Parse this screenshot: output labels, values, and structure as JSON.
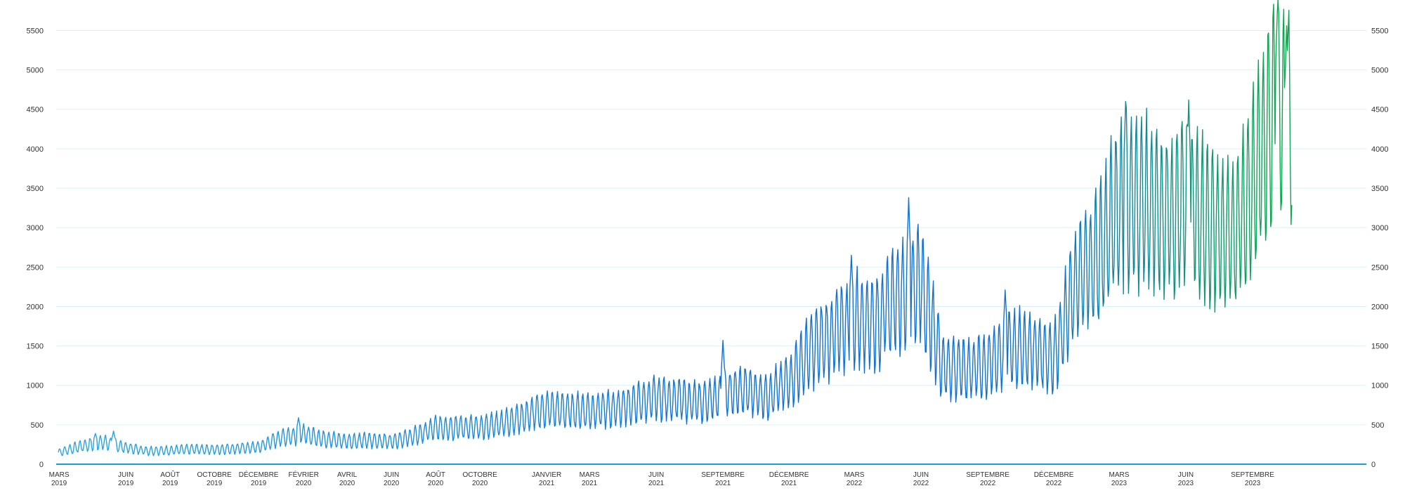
{
  "chart_data": {
    "type": "line",
    "title": "",
    "xlabel": "",
    "ylabel": "",
    "ylim": [
      0,
      5700
    ],
    "y_ticks": [
      0,
      500,
      1000,
      1500,
      2000,
      2500,
      3000,
      3500,
      4000,
      4500,
      5000,
      5500
    ],
    "y_axes": [
      "left",
      "right"
    ],
    "grid": true,
    "x_range": [
      "2019-02-25",
      "2024-01-31"
    ],
    "x_ticks": [
      {
        "month": "MARS",
        "year": "2019",
        "date": "2019-03-01"
      },
      {
        "month": "JUIN",
        "year": "2019",
        "date": "2019-06-01"
      },
      {
        "month": "AOÛT",
        "year": "2019",
        "date": "2019-08-01"
      },
      {
        "month": "OCTOBRE",
        "year": "2019",
        "date": "2019-10-01"
      },
      {
        "month": "DÉCEMBRE",
        "year": "2019",
        "date": "2019-12-01"
      },
      {
        "month": "FÉVRIER",
        "year": "2020",
        "date": "2020-02-01"
      },
      {
        "month": "AVRIL",
        "year": "2020",
        "date": "2020-04-01"
      },
      {
        "month": "JUIN",
        "year": "2020",
        "date": "2020-06-01"
      },
      {
        "month": "AOÛT",
        "year": "2020",
        "date": "2020-08-01"
      },
      {
        "month": "OCTOBRE",
        "year": "2020",
        "date": "2020-10-01"
      },
      {
        "month": "JANVIER",
        "year": "2021",
        "date": "2021-01-01"
      },
      {
        "month": "MARS",
        "year": "2021",
        "date": "2021-03-01"
      },
      {
        "month": "JUIN",
        "year": "2021",
        "date": "2021-06-01"
      },
      {
        "month": "SEPTEMBRE",
        "year": "2021",
        "date": "2021-09-01"
      },
      {
        "month": "DÉCEMBRE",
        "year": "2021",
        "date": "2021-12-01"
      },
      {
        "month": "MARS",
        "year": "2022",
        "date": "2022-03-01"
      },
      {
        "month": "JUIN",
        "year": "2022",
        "date": "2022-06-01"
      },
      {
        "month": "SEPTEMBRE",
        "year": "2022",
        "date": "2022-09-01"
      },
      {
        "month": "DÉCEMBRE",
        "year": "2022",
        "date": "2022-12-01"
      },
      {
        "month": "MARS",
        "year": "2023",
        "date": "2023-03-01"
      },
      {
        "month": "JUIN",
        "year": "2023",
        "date": "2023-06-01"
      },
      {
        "month": "SEPTEMBRE",
        "year": "2023",
        "date": "2023-09-01"
      }
    ],
    "series": [
      {
        "values": [
          [
            "2019-03-01",
            150
          ],
          [
            "2019-04-01",
            230
          ],
          [
            "2019-05-01",
            280
          ],
          [
            "2019-06-01",
            210
          ],
          [
            "2019-07-01",
            170
          ],
          [
            "2019-08-01",
            175
          ],
          [
            "2019-09-01",
            190
          ],
          [
            "2019-10-01",
            185
          ],
          [
            "2019-11-01",
            200
          ],
          [
            "2019-12-01",
            215
          ],
          [
            "2020-01-01",
            340
          ],
          [
            "2020-02-01",
            380
          ],
          [
            "2020-03-01",
            320
          ],
          [
            "2020-04-01",
            290
          ],
          [
            "2020-05-01",
            300
          ],
          [
            "2020-06-01",
            290
          ],
          [
            "2020-07-01",
            350
          ],
          [
            "2020-08-01",
            460
          ],
          [
            "2020-09-01",
            470
          ],
          [
            "2020-10-01",
            460
          ],
          [
            "2020-11-01",
            520
          ],
          [
            "2020-12-01",
            600
          ],
          [
            "2021-01-01",
            700
          ],
          [
            "2021-02-01",
            680
          ],
          [
            "2021-03-01",
            680
          ],
          [
            "2021-04-01",
            700
          ],
          [
            "2021-05-01",
            760
          ],
          [
            "2021-06-01",
            840
          ],
          [
            "2021-07-01",
            820
          ],
          [
            "2021-08-01",
            780
          ],
          [
            "2021-09-01",
            880
          ],
          [
            "2021-10-01",
            940
          ],
          [
            "2021-11-01",
            860
          ],
          [
            "2021-12-01",
            1050
          ],
          [
            "2022-01-01",
            1450
          ],
          [
            "2022-02-01",
            1650
          ],
          [
            "2022-03-01",
            1850
          ],
          [
            "2022-04-01",
            1800
          ],
          [
            "2022-05-01",
            2150
          ],
          [
            "2022-06-01",
            2300
          ],
          [
            "2022-07-01",
            1250
          ],
          [
            "2022-08-01",
            1200
          ],
          [
            "2022-09-01",
            1250
          ],
          [
            "2022-10-01",
            1500
          ],
          [
            "2022-11-01",
            1450
          ],
          [
            "2022-12-01",
            1350
          ],
          [
            "2023-01-01",
            2300
          ],
          [
            "2023-02-01",
            2650
          ],
          [
            "2023-03-01",
            3300
          ],
          [
            "2023-04-01",
            3350
          ],
          [
            "2023-05-01",
            3100
          ],
          [
            "2023-06-01",
            3300
          ],
          [
            "2023-07-01",
            3050
          ],
          [
            "2023-08-01",
            2850
          ],
          [
            "2023-09-01",
            3500
          ],
          [
            "2023-10-01",
            4600
          ],
          [
            "2023-10-25",
            4200
          ]
        ]
      }
    ],
    "notable_peaks": [
      [
        "2019-04-20",
        390
      ],
      [
        "2019-05-15",
        420
      ],
      [
        "2020-01-25",
        590
      ],
      [
        "2021-09-01",
        1570
      ],
      [
        "2022-02-25",
        2650
      ],
      [
        "2022-05-15",
        3380
      ],
      [
        "2022-09-25",
        2210
      ],
      [
        "2023-03-10",
        4600
      ],
      [
        "2023-06-05",
        4620
      ],
      [
        "2023-10-05",
        5700
      ],
      [
        "2023-10-18",
        5560
      ]
    ],
    "colors": {
      "line_start": "#2aa8e0",
      "line_mid": "#1372d0",
      "line_end": "#0fa650",
      "grid": "#d9f0f7",
      "axis": "#1f9bd0",
      "tick_text": "#333333"
    }
  }
}
